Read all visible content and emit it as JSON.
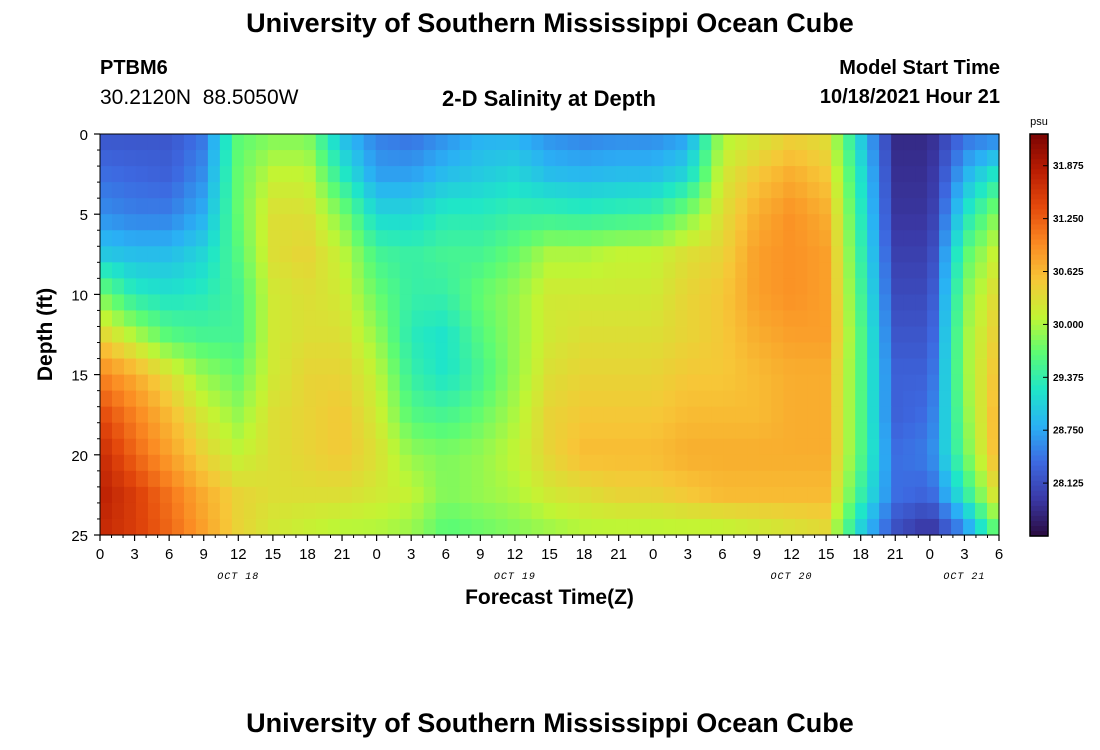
{
  "page": {
    "title_top": "University of Southern Mississippi Ocean Cube",
    "title_bottom": "University of Southern Mississippi Ocean Cube"
  },
  "station": {
    "id": "PTBM6",
    "coords": "30.2120N  88.5050W"
  },
  "model": {
    "label": "Model Start Time",
    "start": "10/18/2021 Hour 21"
  },
  "chart_data": {
    "type": "heatmap",
    "title": "2-D Salinity at Depth",
    "xlabel": "Forecast Time(Z)",
    "ylabel": "Depth (ft)",
    "xlim_hours": [
      0,
      78
    ],
    "ylim": [
      25,
      0
    ],
    "y_ticks": [
      0,
      5,
      10,
      15,
      20,
      25
    ],
    "x_tick_labels": [
      "0",
      "3",
      "6",
      "9",
      "12",
      "15",
      "18",
      "21",
      "0",
      "3",
      "6",
      "9",
      "12",
      "15",
      "18",
      "21",
      "0",
      "3",
      "6",
      "9",
      "12",
      "15",
      "18",
      "21",
      "0",
      "3",
      "6"
    ],
    "date_labels": [
      {
        "label": "OCT 18",
        "hour": 12
      },
      {
        "label": "OCT 19",
        "hour": 36
      },
      {
        "label": "OCT 20",
        "hour": 60
      },
      {
        "label": "OCT 21",
        "hour": 75
      }
    ],
    "colorbar": {
      "unit": "psu",
      "min": 27.5,
      "max": 32.25,
      "ticks": [
        "31.875",
        "31.250",
        "30.625",
        "30.000",
        "29.375",
        "28.750",
        "28.125"
      ],
      "colors": [
        "#2a0b3f",
        "#3a38a5",
        "#3d68e0",
        "#2ab0f5",
        "#1fe6c8",
        "#5cfc74",
        "#c2f533",
        "#f7c637",
        "#fb8a22",
        "#e4490c",
        "#b91d03",
        "#7a0403"
      ]
    },
    "grid": {
      "hours": [
        0,
        3,
        6,
        9,
        12,
        15,
        18,
        21,
        24,
        27,
        30,
        33,
        36,
        39,
        42,
        45,
        48,
        51,
        54,
        57,
        60,
        63,
        66,
        69,
        72,
        75,
        78
      ],
      "depths": [
        0,
        2.5,
        5,
        7.5,
        10,
        12.5,
        15,
        17.5,
        20,
        22.5,
        25
      ],
      "values": [
        [
          28.2,
          28.2,
          28.2,
          28.45,
          29.65,
          29.8,
          29.8,
          28.9,
          28.5,
          28.4,
          28.6,
          28.8,
          28.8,
          28.6,
          28.5,
          28.55,
          28.55,
          28.7,
          30.0,
          30.2,
          30.4,
          30.3,
          29.0,
          27.8,
          27.8,
          28.4,
          28.5
        ],
        [
          28.4,
          28.35,
          28.3,
          28.6,
          29.7,
          30.1,
          30.1,
          29.3,
          28.7,
          28.7,
          28.9,
          29.0,
          29.1,
          28.9,
          28.85,
          28.9,
          28.9,
          29.1,
          30.2,
          30.5,
          30.7,
          30.5,
          29.2,
          27.85,
          27.85,
          28.8,
          29.3
        ],
        [
          28.6,
          28.5,
          28.5,
          28.8,
          29.7,
          30.3,
          30.3,
          29.8,
          29.1,
          29.1,
          29.3,
          29.3,
          29.4,
          29.4,
          29.35,
          29.4,
          29.45,
          29.8,
          30.3,
          30.7,
          30.9,
          30.7,
          29.3,
          27.9,
          27.9,
          29.2,
          29.9
        ],
        [
          29.0,
          28.9,
          28.9,
          29.1,
          29.6,
          30.3,
          30.4,
          30.1,
          29.5,
          29.4,
          29.5,
          29.5,
          29.7,
          30.0,
          30.0,
          30.1,
          30.1,
          30.3,
          30.4,
          30.8,
          30.9,
          30.8,
          29.4,
          28.0,
          28.0,
          29.6,
          30.2
        ],
        [
          29.8,
          29.3,
          29.2,
          29.3,
          29.5,
          30.2,
          30.3,
          30.2,
          29.7,
          29.4,
          29.4,
          29.7,
          29.9,
          30.2,
          30.2,
          30.2,
          30.2,
          30.4,
          30.5,
          30.8,
          30.9,
          30.8,
          29.5,
          28.1,
          28.1,
          29.8,
          30.4
        ],
        [
          30.4,
          30.0,
          29.6,
          29.5,
          29.5,
          30.2,
          30.3,
          30.3,
          29.9,
          29.3,
          29.2,
          29.6,
          29.9,
          30.2,
          30.3,
          30.3,
          30.3,
          30.4,
          30.5,
          30.7,
          30.8,
          30.8,
          29.6,
          28.2,
          28.2,
          29.9,
          30.5
        ],
        [
          31.0,
          30.7,
          30.3,
          29.9,
          29.7,
          30.2,
          30.4,
          30.4,
          30.1,
          29.4,
          29.2,
          29.5,
          29.9,
          30.3,
          30.4,
          30.4,
          30.4,
          30.5,
          30.5,
          30.6,
          30.7,
          30.7,
          29.6,
          28.3,
          28.3,
          29.9,
          30.6
        ],
        [
          31.4,
          31.0,
          30.6,
          30.2,
          29.9,
          30.3,
          30.4,
          30.5,
          30.2,
          29.6,
          29.5,
          29.7,
          30.0,
          30.4,
          30.5,
          30.5,
          30.5,
          30.6,
          30.6,
          30.6,
          30.7,
          30.7,
          29.6,
          28.3,
          28.4,
          29.8,
          30.7
        ],
        [
          31.7,
          31.2,
          30.8,
          30.4,
          30.1,
          30.3,
          30.4,
          30.5,
          30.3,
          29.9,
          29.8,
          29.9,
          30.1,
          30.4,
          30.6,
          30.6,
          30.6,
          30.7,
          30.7,
          30.7,
          30.7,
          30.7,
          29.6,
          28.4,
          28.5,
          29.7,
          30.7
        ],
        [
          31.8,
          31.5,
          31.1,
          30.7,
          30.4,
          30.3,
          30.3,
          30.3,
          30.2,
          30.1,
          29.8,
          29.9,
          30.0,
          30.2,
          30.3,
          30.4,
          30.4,
          30.5,
          30.6,
          30.6,
          30.6,
          30.6,
          29.4,
          28.4,
          28.3,
          29.3,
          30.4
        ],
        [
          31.7,
          31.5,
          31.2,
          30.8,
          30.4,
          30.2,
          30.1,
          30.0,
          30.0,
          29.9,
          29.6,
          29.7,
          29.8,
          29.9,
          30.0,
          30.0,
          30.0,
          30.0,
          30.0,
          30.1,
          30.2,
          30.3,
          29.0,
          28.1,
          27.8,
          28.5,
          29.7
        ]
      ]
    }
  }
}
